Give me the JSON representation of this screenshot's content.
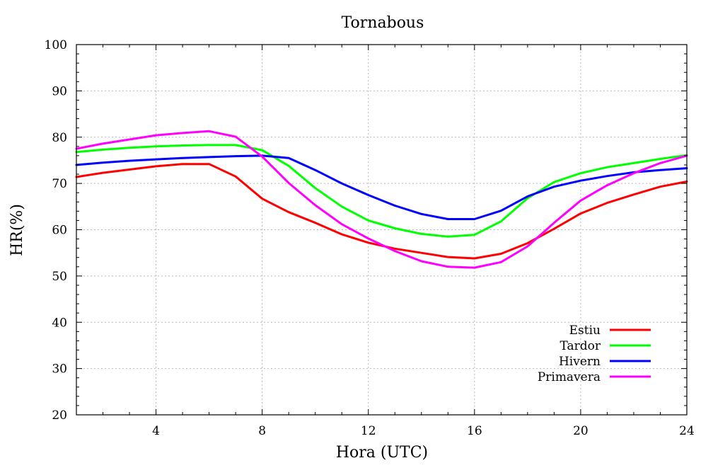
{
  "chart_data": {
    "type": "line",
    "title": "Tornabous",
    "xlabel": "Hora (UTC)",
    "ylabel": "HR(%)",
    "xlim": [
      1,
      24
    ],
    "ylim": [
      20,
      100
    ],
    "xticks": [
      4,
      8,
      12,
      16,
      20,
      24
    ],
    "yticks": [
      20,
      30,
      40,
      50,
      60,
      70,
      80,
      90,
      100
    ],
    "grid": true,
    "legend_position": "bottom-right",
    "x": [
      1,
      2,
      3,
      4,
      5,
      6,
      7,
      8,
      9,
      10,
      11,
      12,
      13,
      14,
      15,
      16,
      17,
      18,
      19,
      20,
      21,
      22,
      23,
      24
    ],
    "series": [
      {
        "name": "Estiu",
        "color": "#ff0000",
        "values": [
          71.4,
          72.3,
          73.0,
          73.7,
          74.2,
          74.2,
          71.5,
          66.7,
          63.8,
          61.5,
          59.0,
          57.2,
          55.9,
          55.0,
          54.1,
          53.8,
          54.8,
          57.1,
          60.2,
          63.5,
          65.8,
          67.6,
          69.3,
          70.4
        ]
      },
      {
        "name": "Tardor",
        "color": "#00ff00",
        "values": [
          76.8,
          77.3,
          77.7,
          78.0,
          78.2,
          78.3,
          78.3,
          77.2,
          73.8,
          69.0,
          65.0,
          62.0,
          60.3,
          59.1,
          58.5,
          58.9,
          61.8,
          66.8,
          70.3,
          72.2,
          73.5,
          74.4,
          75.3,
          76.1
        ]
      },
      {
        "name": "Hivern",
        "color": "#0000ff",
        "values": [
          74.0,
          74.5,
          74.9,
          75.2,
          75.5,
          75.7,
          75.9,
          76.0,
          75.5,
          72.9,
          70.0,
          67.5,
          65.2,
          63.4,
          62.3,
          62.3,
          64.1,
          67.2,
          69.3,
          70.6,
          71.6,
          72.4,
          72.9,
          73.3
        ]
      },
      {
        "name": "Primavera",
        "color": "#ff00ff",
        "values": [
          77.5,
          78.6,
          79.5,
          80.4,
          80.9,
          81.3,
          80.1,
          75.8,
          70.1,
          65.3,
          61.2,
          58.1,
          55.4,
          53.2,
          52.0,
          51.8,
          53.0,
          56.4,
          61.5,
          66.3,
          69.6,
          72.2,
          74.4,
          76.0
        ]
      }
    ]
  }
}
